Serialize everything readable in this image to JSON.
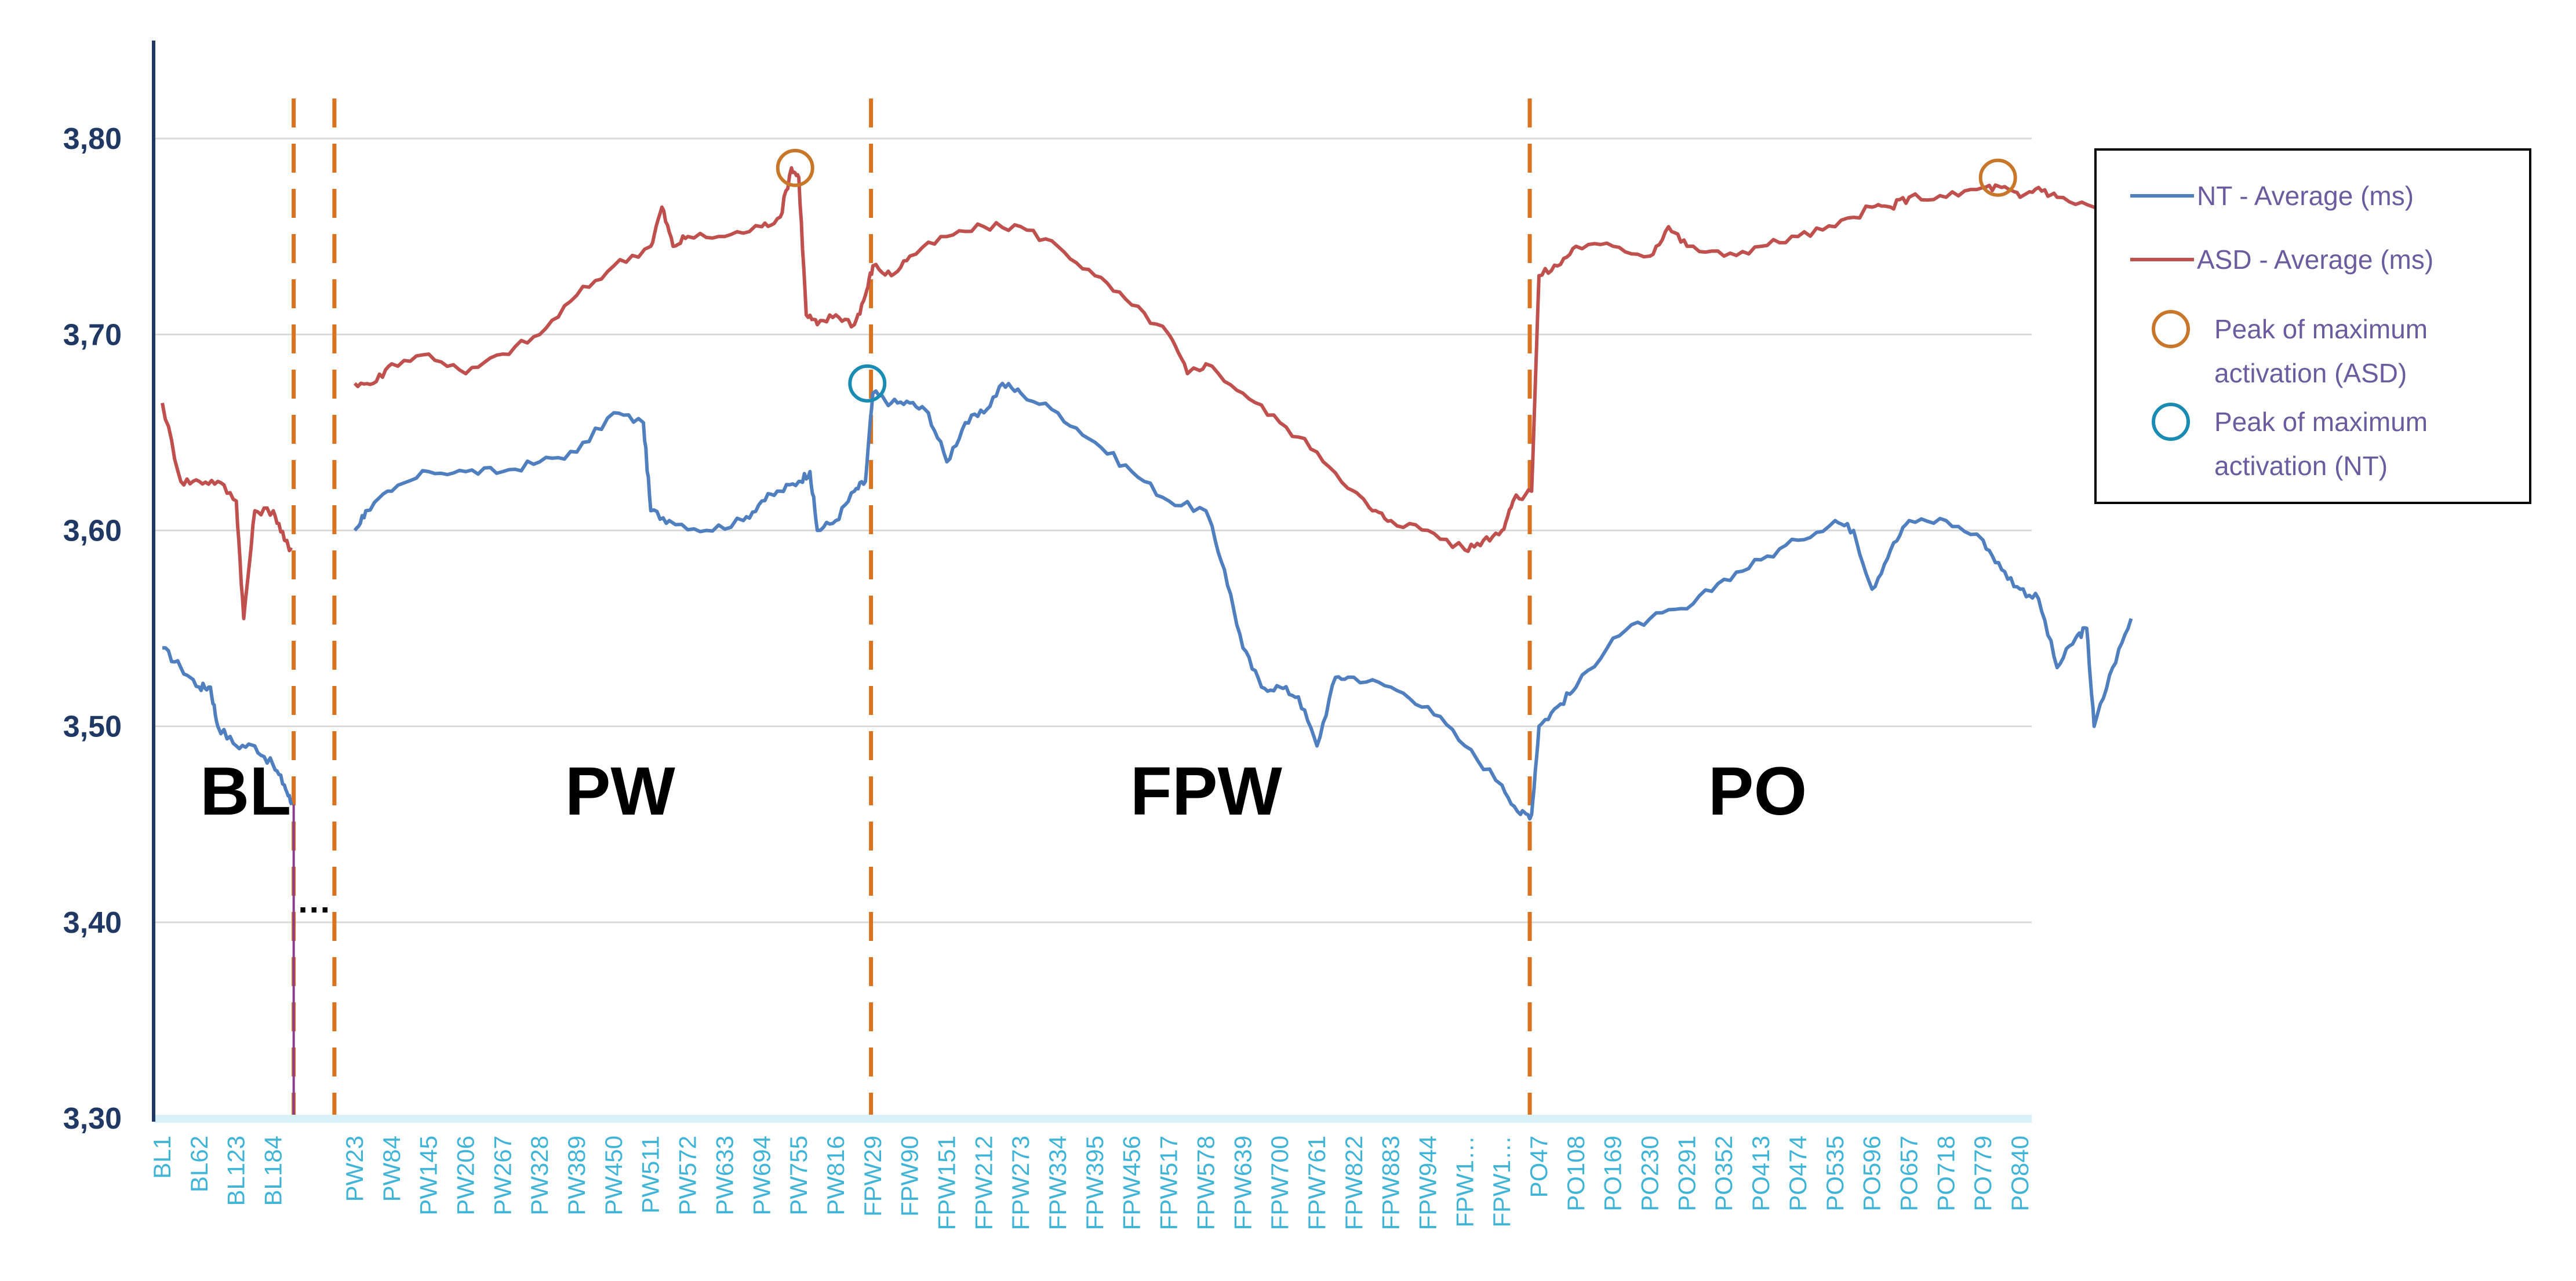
{
  "chart_data": {
    "type": "line",
    "ylim": [
      3.3,
      3.85
    ],
    "yticks": [
      "3,30",
      "3,40",
      "3,50",
      "3,60",
      "3,70",
      "3,80"
    ],
    "grid": true,
    "legend_position": "right",
    "x_labels": [
      "BL1",
      "BL62",
      "BL123",
      "BL184",
      "PW23",
      "PW84",
      "PW145",
      "PW206",
      "PW267",
      "PW328",
      "PW389",
      "PW450",
      "PW511",
      "PW572",
      "PW633",
      "PW694",
      "PW755",
      "PW816",
      "FPW29",
      "FPW90",
      "FPW151",
      "FPW212",
      "FPW273",
      "FPW334",
      "FPW395",
      "FPW456",
      "FPW517",
      "FPW578",
      "FPW639",
      "FPW700",
      "FPW761",
      "FPW822",
      "FPW883",
      "FPW944",
      "FPW1…",
      "FPW1…",
      "PO47",
      "PO108",
      "PO169",
      "PO230",
      "PO291",
      "PO352",
      "PO413",
      "PO474",
      "PO535",
      "PO596",
      "PO657",
      "PO718",
      "PO779",
      "PO840"
    ],
    "phases": [
      {
        "label": "BL",
        "start": 0,
        "end": 3.9
      },
      {
        "label": "PW",
        "start": 3.9,
        "end": 17.9
      },
      {
        "label": "FPW",
        "start": 17.9,
        "end": 35.5
      },
      {
        "label": "PO",
        "start": 35.5,
        "end": 49
      }
    ],
    "gap_marker": "…",
    "series": [
      {
        "name": "NT - Average (ms)",
        "color": "#4f7fbf",
        "points": [
          [
            0,
            3.54
          ],
          [
            0.5,
            3.53
          ],
          [
            1.0,
            3.52
          ],
          [
            1.3,
            3.52
          ],
          [
            1.5,
            3.5
          ],
          [
            2.0,
            3.49
          ],
          [
            2.5,
            3.49
          ],
          [
            3.0,
            3.48
          ],
          [
            3.3,
            3.47
          ],
          [
            3.5,
            3.46
          ],
          [
            4.0,
            3.6
          ],
          [
            4.3,
            3.61
          ],
          [
            5.0,
            3.62
          ],
          [
            6.0,
            3.63
          ],
          [
            7.0,
            3.63
          ],
          [
            8.0,
            3.63
          ],
          [
            9.0,
            3.635
          ],
          [
            10.0,
            3.64
          ],
          [
            11.0,
            3.66
          ],
          [
            11.8,
            3.655
          ],
          [
            12.0,
            3.61
          ],
          [
            12.5,
            3.605
          ],
          [
            13.5,
            3.6
          ],
          [
            14.5,
            3.605
          ],
          [
            15.0,
            3.615
          ],
          [
            15.5,
            3.62
          ],
          [
            16.0,
            3.625
          ],
          [
            16.3,
            3.63
          ],
          [
            16.5,
            3.6
          ],
          [
            17.0,
            3.605
          ],
          [
            17.5,
            3.62
          ],
          [
            17.8,
            3.625
          ],
          [
            18.0,
            3.67
          ],
          [
            18.5,
            3.665
          ],
          [
            19.0,
            3.665
          ],
          [
            19.5,
            3.66
          ],
          [
            20.0,
            3.635
          ],
          [
            20.5,
            3.655
          ],
          [
            21.0,
            3.66
          ],
          [
            21.5,
            3.675
          ],
          [
            22.0,
            3.67
          ],
          [
            23.0,
            3.66
          ],
          [
            24.0,
            3.645
          ],
          [
            25.0,
            3.63
          ],
          [
            26.0,
            3.615
          ],
          [
            27.0,
            3.61
          ],
          [
            27.5,
            3.58
          ],
          [
            28.0,
            3.54
          ],
          [
            28.5,
            3.52
          ],
          [
            29.0,
            3.52
          ],
          [
            29.5,
            3.515
          ],
          [
            30.0,
            3.49
          ],
          [
            30.5,
            3.525
          ],
          [
            31.0,
            3.525
          ],
          [
            32.0,
            3.52
          ],
          [
            33.0,
            3.51
          ],
          [
            34.0,
            3.49
          ],
          [
            35.0,
            3.47
          ],
          [
            35.5,
            3.455
          ],
          [
            35.8,
            3.455
          ],
          [
            36.0,
            3.5
          ],
          [
            36.5,
            3.51
          ],
          [
            37.0,
            3.52
          ],
          [
            38.0,
            3.545
          ],
          [
            39.0,
            3.555
          ],
          [
            40.0,
            3.56
          ],
          [
            41.0,
            3.575
          ],
          [
            42.0,
            3.585
          ],
          [
            43.0,
            3.595
          ],
          [
            44.0,
            3.605
          ],
          [
            44.5,
            3.6
          ],
          [
            45.0,
            3.57
          ],
          [
            45.5,
            3.59
          ],
          [
            46.0,
            3.605
          ],
          [
            47.0,
            3.605
          ],
          [
            48.0,
            3.595
          ],
          [
            48.5,
            3.58
          ],
          [
            49.0,
            3.57
          ],
          [
            49.5,
            3.565
          ],
          [
            50.0,
            3.53
          ],
          [
            50.5,
            3.545
          ],
          [
            50.8,
            3.55
          ],
          [
            51.0,
            3.5
          ],
          [
            51.5,
            3.53
          ],
          [
            52.0,
            3.555
          ]
        ]
      },
      {
        "name": "ASD - Average (ms)",
        "color": "#c0504d",
        "points": [
          [
            0,
            3.665
          ],
          [
            0.5,
            3.625
          ],
          [
            1.0,
            3.625
          ],
          [
            1.5,
            3.625
          ],
          [
            2.0,
            3.615
          ],
          [
            2.2,
            3.555
          ],
          [
            2.5,
            3.61
          ],
          [
            3.0,
            3.61
          ],
          [
            3.3,
            3.595
          ],
          [
            3.5,
            3.59
          ],
          [
            4.0,
            3.675
          ],
          [
            4.5,
            3.675
          ],
          [
            5.0,
            3.685
          ],
          [
            6.0,
            3.69
          ],
          [
            7.0,
            3.68
          ],
          [
            8.0,
            3.69
          ],
          [
            9.0,
            3.7
          ],
          [
            10.0,
            3.72
          ],
          [
            11.0,
            3.735
          ],
          [
            12.0,
            3.745
          ],
          [
            12.3,
            3.765
          ],
          [
            12.6,
            3.745
          ],
          [
            13.0,
            3.75
          ],
          [
            14.0,
            3.75
          ],
          [
            15.0,
            3.755
          ],
          [
            15.5,
            3.76
          ],
          [
            15.8,
            3.785
          ],
          [
            16.0,
            3.78
          ],
          [
            16.2,
            3.71
          ],
          [
            16.5,
            3.705
          ],
          [
            17.0,
            3.71
          ],
          [
            17.5,
            3.705
          ],
          [
            17.8,
            3.72
          ],
          [
            18.0,
            3.735
          ],
          [
            18.5,
            3.73
          ],
          [
            19.0,
            3.74
          ],
          [
            20.0,
            3.75
          ],
          [
            21.0,
            3.755
          ],
          [
            22.0,
            3.755
          ],
          [
            23.0,
            3.745
          ],
          [
            24.0,
            3.73
          ],
          [
            25.0,
            3.715
          ],
          [
            26.0,
            3.7
          ],
          [
            26.5,
            3.68
          ],
          [
            27.0,
            3.685
          ],
          [
            28.0,
            3.67
          ],
          [
            29.0,
            3.655
          ],
          [
            30.0,
            3.64
          ],
          [
            31.0,
            3.62
          ],
          [
            31.5,
            3.61
          ],
          [
            32.0,
            3.605
          ],
          [
            33.0,
            3.6
          ],
          [
            34.0,
            3.59
          ],
          [
            34.5,
            3.595
          ],
          [
            35.0,
            3.6
          ],
          [
            35.3,
            3.615
          ],
          [
            35.8,
            3.62
          ],
          [
            36.0,
            3.73
          ],
          [
            36.5,
            3.735
          ],
          [
            37.0,
            3.745
          ],
          [
            38.0,
            3.745
          ],
          [
            39.0,
            3.74
          ],
          [
            39.5,
            3.755
          ],
          [
            40.0,
            3.745
          ],
          [
            41.0,
            3.74
          ],
          [
            42.0,
            3.745
          ],
          [
            43.0,
            3.75
          ],
          [
            44.0,
            3.755
          ],
          [
            45.0,
            3.765
          ],
          [
            45.5,
            3.765
          ],
          [
            46.0,
            3.77
          ],
          [
            47.0,
            3.77
          ],
          [
            48.0,
            3.775
          ],
          [
            48.5,
            3.775
          ],
          [
            49.0,
            3.77
          ],
          [
            49.5,
            3.775
          ],
          [
            50.0,
            3.77
          ],
          [
            51.0,
            3.765
          ],
          [
            51.5,
            3.76
          ],
          [
            52.0,
            3.745
          ],
          [
            52.0,
            3.715
          ]
        ]
      }
    ],
    "peaks": [
      {
        "series": "ASD - Average (ms)",
        "x": 15.9,
        "y": 3.785,
        "color": "#c8772a"
      },
      {
        "series": "ASD - Average (ms)",
        "x": 48.4,
        "y": 3.78,
        "color": "#c8772a"
      },
      {
        "series": "NT - Average (ms)",
        "x": 17.85,
        "y": 3.675,
        "color": "#1a8cb4"
      }
    ],
    "legend": [
      {
        "kind": "line",
        "label": "NT - Average (ms)",
        "color": "#4f7fbf"
      },
      {
        "kind": "line",
        "label": "ASD - Average (ms)",
        "color": "#c0504d"
      },
      {
        "kind": "circle",
        "label": [
          "Peak of maximum",
          "activation (ASD)"
        ],
        "color": "#c8772a"
      },
      {
        "kind": "circle",
        "label": [
          "Peak of maximum",
          "activation (NT)"
        ],
        "color": "#1a8cb4"
      }
    ],
    "colors": {
      "axis": "#1f3864",
      "tick_label_y": "#1f3864",
      "tick_label_x": "#3fb4d6",
      "phase_divider": "#d9731f",
      "grid": "#d9d9d9",
      "legend_text": "#6a5c9e"
    }
  }
}
